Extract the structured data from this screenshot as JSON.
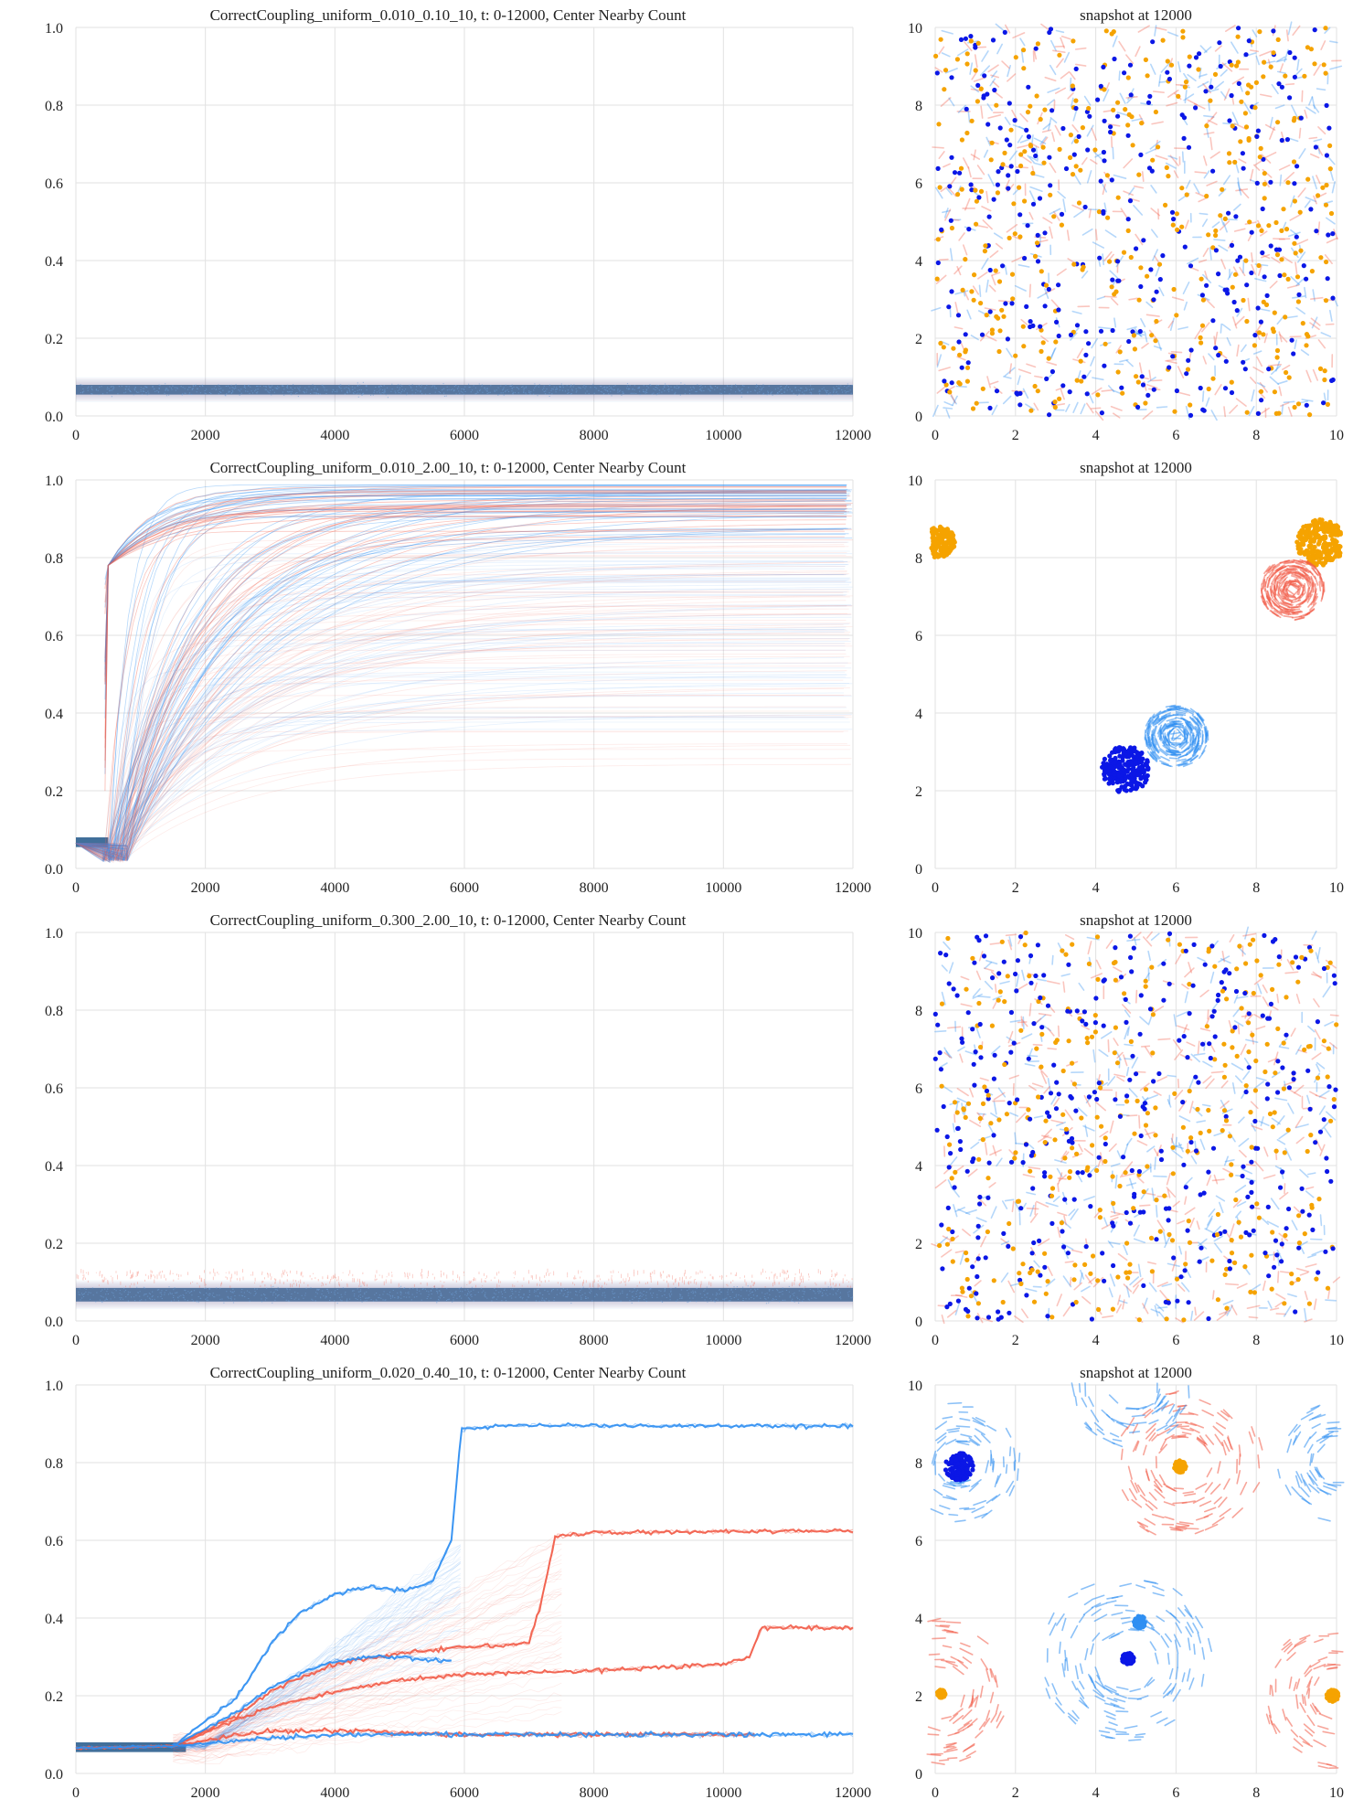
{
  "colors": {
    "blue_dark": "#0b17e6",
    "blue_light": "#2f8ff2",
    "red": "#f25c48",
    "orange": "#f5a300",
    "band": "#2c5f8f",
    "grid": "#e2e2e2"
  },
  "chart_data": [
    {
      "type": "line",
      "title": "CorrectCoupling_uniform_0.010_0.10_10,     t: 0-12000, Center Nearby Count",
      "xlim": [
        0,
        12000
      ],
      "ylim": [
        0,
        1.0
      ],
      "xticks": [
        "0",
        "2000",
        "4000",
        "6000",
        "8000",
        "10000",
        "12000"
      ],
      "yticks": [
        "0.0",
        "0.2",
        "0.4",
        "0.6",
        "0.8",
        "1.0"
      ],
      "grid": true,
      "pattern": "flat",
      "band": [
        0.055,
        0.08
      ],
      "series": []
    },
    {
      "type": "scatter",
      "title": "snapshot at 12000",
      "xlim": [
        0,
        10
      ],
      "ylim": [
        0,
        10
      ],
      "xticks": [
        "0",
        "2",
        "4",
        "6",
        "8",
        "10"
      ],
      "yticks": [
        "0",
        "2",
        "4",
        "6",
        "8",
        "10"
      ],
      "grid": true,
      "pattern": "uniform"
    },
    {
      "type": "line",
      "title": "CorrectCoupling_uniform_0.010_2.00_10,     t: 0-12000, Center Nearby Count",
      "xlim": [
        0,
        12000
      ],
      "ylim": [
        0,
        1.0
      ],
      "xticks": [
        "0",
        "2000",
        "4000",
        "6000",
        "8000",
        "10000",
        "12000"
      ],
      "yticks": [
        "0.0",
        "0.2",
        "0.4",
        "0.6",
        "0.8",
        "1.0"
      ],
      "grid": true,
      "pattern": "saturating",
      "band": [
        0.055,
        0.08
      ],
      "series": []
    },
    {
      "type": "scatter",
      "title": "snapshot at 12000",
      "xlim": [
        0,
        10
      ],
      "ylim": [
        0,
        10
      ],
      "xticks": [
        "0",
        "2",
        "4",
        "6",
        "8",
        "10"
      ],
      "yticks": [
        "0",
        "2",
        "4",
        "6",
        "8",
        "10"
      ],
      "grid": true,
      "pattern": "clusters",
      "clusters": [
        {
          "color": "orange",
          "cx": 9.6,
          "cy": 8.4,
          "r": 0.6,
          "kind": "dots"
        },
        {
          "color": "orange",
          "cx": 0.1,
          "cy": 8.4,
          "r": 0.4,
          "kind": "dots"
        },
        {
          "color": "red",
          "cx": 8.9,
          "cy": 7.2,
          "r": 0.8,
          "kind": "arrows"
        },
        {
          "color": "blue_dark",
          "cx": 4.75,
          "cy": 2.55,
          "r": 0.6,
          "kind": "dots"
        },
        {
          "color": "blue_light",
          "cx": 6.0,
          "cy": 3.4,
          "r": 0.8,
          "kind": "arrows"
        }
      ]
    },
    {
      "type": "line",
      "title": "CorrectCoupling_uniform_0.300_2.00_10,     t: 0-12000, Center Nearby Count",
      "xlim": [
        0,
        12000
      ],
      "ylim": [
        0,
        1.0
      ],
      "xticks": [
        "0",
        "2000",
        "4000",
        "6000",
        "8000",
        "10000",
        "12000"
      ],
      "yticks": [
        "0.0",
        "0.2",
        "0.4",
        "0.6",
        "0.8",
        "1.0"
      ],
      "grid": true,
      "pattern": "flat",
      "band": [
        0.05,
        0.085
      ],
      "series": []
    },
    {
      "type": "scatter",
      "title": "snapshot at 12000",
      "xlim": [
        0,
        10
      ],
      "ylim": [
        0,
        10
      ],
      "xticks": [
        "0",
        "2",
        "4",
        "6",
        "8",
        "10"
      ],
      "yticks": [
        "0",
        "2",
        "4",
        "6",
        "8",
        "10"
      ],
      "grid": true,
      "pattern": "uniform"
    },
    {
      "type": "line",
      "title": "CorrectCoupling_uniform_0.020_0.40_10,     t: 0-12000, Center Nearby Count",
      "xlim": [
        0,
        12000
      ],
      "ylim": [
        0,
        1.0
      ],
      "xticks": [
        "0",
        "2000",
        "4000",
        "6000",
        "8000",
        "10000",
        "12000"
      ],
      "yticks": [
        "0.0",
        "0.2",
        "0.4",
        "0.6",
        "0.8",
        "1.0"
      ],
      "grid": true,
      "pattern": "steps",
      "band": [
        0.055,
        0.08
      ],
      "series": [
        {
          "color": "blue_light",
          "x": [
            0,
            1500,
            2500,
            3000,
            3500,
            4000,
            4500,
            5000,
            5500,
            5800,
            5950,
            6500,
            12000
          ],
          "y": [
            0.065,
            0.07,
            0.2,
            0.33,
            0.42,
            0.46,
            0.48,
            0.47,
            0.49,
            0.6,
            0.885,
            0.895,
            0.895
          ]
        },
        {
          "color": "red",
          "x": [
            0,
            1500,
            2500,
            3000,
            3500,
            4000,
            5000,
            6000,
            7000,
            7200,
            7400,
            8000,
            12000
          ],
          "y": [
            0.065,
            0.07,
            0.15,
            0.21,
            0.25,
            0.28,
            0.31,
            0.325,
            0.335,
            0.45,
            0.61,
            0.62,
            0.625
          ]
        },
        {
          "color": "red",
          "x": [
            0,
            1500,
            2500,
            3000,
            4000,
            5000,
            6000,
            8000,
            10000,
            10400,
            10600,
            12000
          ],
          "y": [
            0.065,
            0.07,
            0.14,
            0.17,
            0.21,
            0.24,
            0.255,
            0.265,
            0.28,
            0.3,
            0.375,
            0.375
          ]
        },
        {
          "color": "blue_light",
          "x": [
            0,
            1500,
            2500,
            3000,
            3500,
            4000,
            4500,
            5000,
            5800
          ],
          "y": [
            0.065,
            0.07,
            0.16,
            0.22,
            0.26,
            0.29,
            0.3,
            0.3,
            0.29
          ]
        },
        {
          "color": "red",
          "x": [
            0,
            1500,
            2500,
            3000,
            3500,
            4000,
            4500,
            5000,
            6000,
            8000,
            10500
          ],
          "y": [
            0.065,
            0.07,
            0.1,
            0.11,
            0.11,
            0.11,
            0.11,
            0.105,
            0.1,
            0.1,
            0.1
          ]
        },
        {
          "color": "blue_light",
          "x": [
            0,
            1500,
            2500,
            4000,
            6000,
            8000,
            12000
          ],
          "y": [
            0.065,
            0.07,
            0.085,
            0.1,
            0.1,
            0.1,
            0.1
          ]
        }
      ],
      "faint_bands": [
        {
          "color": "blue_light",
          "x": [
            2000,
            6000
          ],
          "y_lo": [
            0.07,
            0.3
          ],
          "y_hi": [
            0.07,
            0.62
          ]
        },
        {
          "color": "red",
          "x": [
            2000,
            7500
          ],
          "y_lo": [
            0.03,
            0.15
          ],
          "y_hi": [
            0.1,
            0.62
          ]
        }
      ]
    },
    {
      "type": "scatter",
      "title": "snapshot at 12000",
      "xlim": [
        0,
        10
      ],
      "ylim": [
        0,
        10
      ],
      "xticks": [
        "0",
        "2",
        "4",
        "6",
        "8",
        "10"
      ],
      "yticks": [
        "0",
        "2",
        "4",
        "6",
        "8",
        "10"
      ],
      "grid": true,
      "pattern": "vortices",
      "vortices": [
        {
          "color": "red",
          "cx": 6.2,
          "cy": 8.0,
          "r": 1.8
        },
        {
          "color": "blue_light",
          "cx": 4.8,
          "cy": 2.9,
          "r": 2.0
        },
        {
          "color": "red",
          "cx": 10.0,
          "cy": 2.0,
          "r": 1.7
        },
        {
          "color": "red",
          "cx": 0.1,
          "cy": 2.1,
          "r": 1.7
        },
        {
          "color": "blue_light",
          "cx": 0.6,
          "cy": 8.0,
          "r": 1.4
        },
        {
          "color": "blue_light",
          "cx": 10.0,
          "cy": 8.0,
          "r": 1.4
        },
        {
          "color": "blue_light",
          "cx": 5.0,
          "cy": 10.0,
          "r": 1.5
        }
      ],
      "clusters": [
        {
          "color": "orange",
          "cx": 6.1,
          "cy": 7.9,
          "r": 0.15,
          "kind": "dots"
        },
        {
          "color": "blue_dark",
          "cx": 4.8,
          "cy": 2.95,
          "r": 0.15,
          "kind": "dots"
        },
        {
          "color": "blue_dark",
          "cx": 0.6,
          "cy": 7.9,
          "r": 0.35,
          "kind": "dots"
        },
        {
          "color": "orange",
          "cx": 0.15,
          "cy": 2.05,
          "r": 0.1,
          "kind": "dots"
        },
        {
          "color": "orange",
          "cx": 9.9,
          "cy": 2.0,
          "r": 0.15,
          "kind": "dots"
        },
        {
          "color": "blue_light",
          "cx": 5.1,
          "cy": 3.9,
          "r": 0.15,
          "kind": "dots"
        }
      ]
    }
  ]
}
